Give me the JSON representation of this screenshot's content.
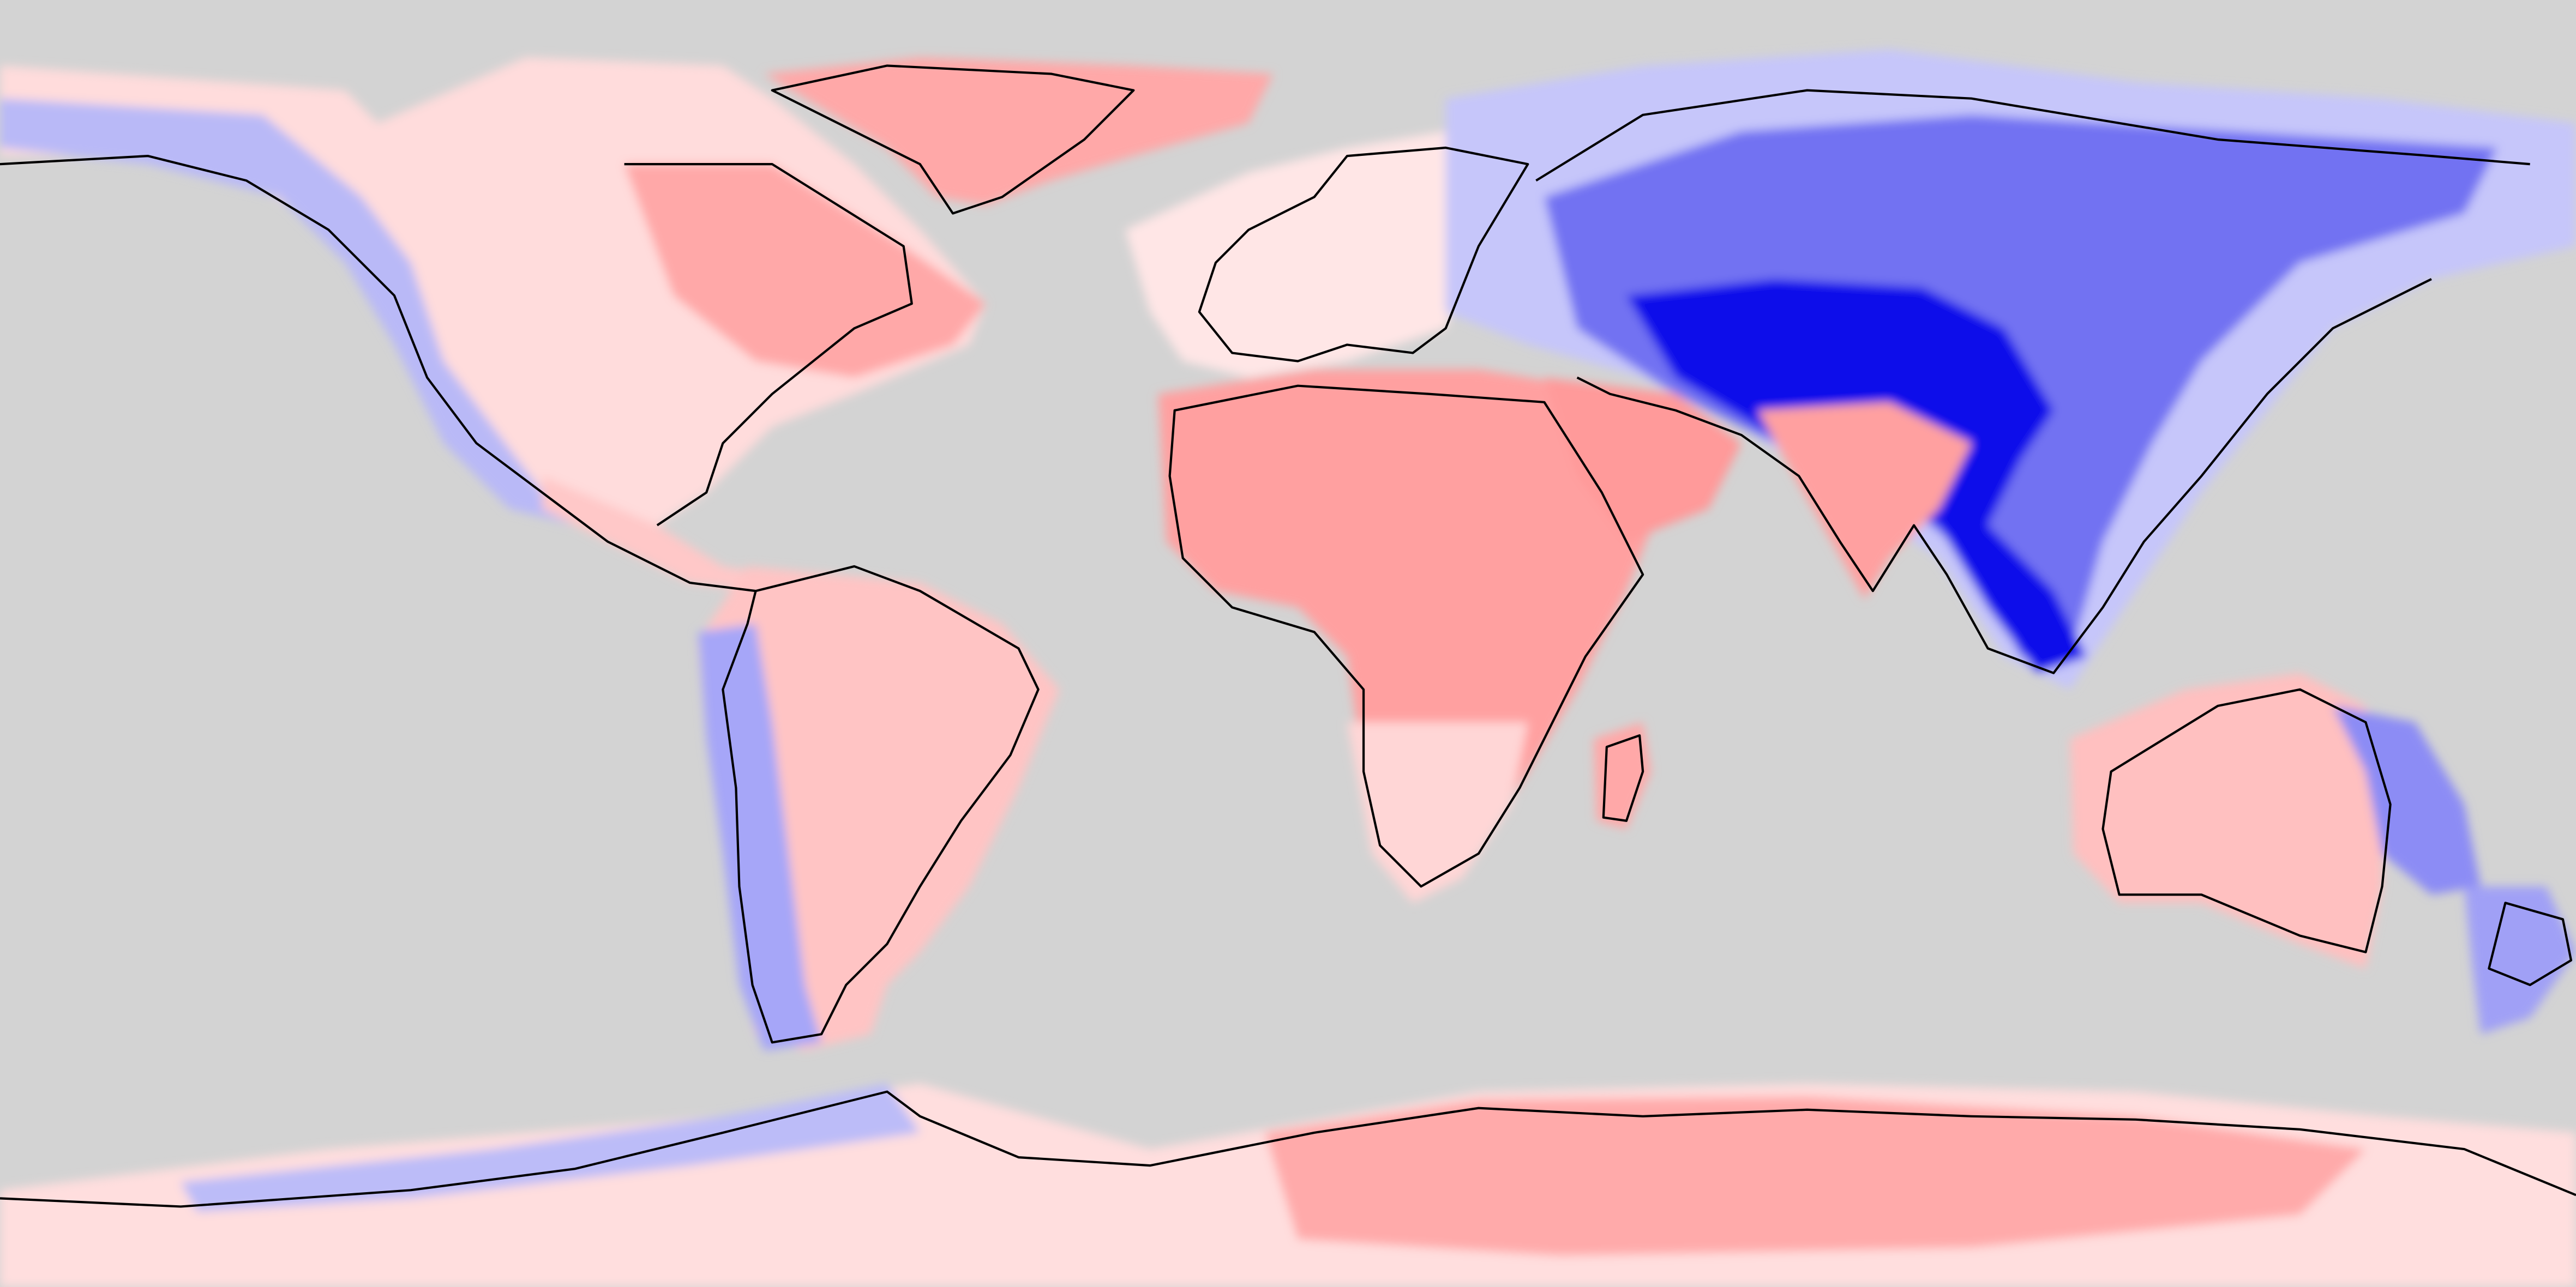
{
  "map": {
    "projection": "equirectangular",
    "variable_style": "diverging blue-white-red shaded anomaly field over land",
    "ocean_color": "#d3d3d3",
    "coastline_color": "#000000",
    "palette": [
      "#0000e6",
      "#3a3ae6",
      "#7272f2",
      "#a6a6f8",
      "#d0d0fb",
      "#eeeeff",
      "#ffeeee",
      "#ffd6d6",
      "#ffbdbd",
      "#ffa8a8",
      "#ff9393"
    ],
    "legend": null,
    "title": ""
  }
}
